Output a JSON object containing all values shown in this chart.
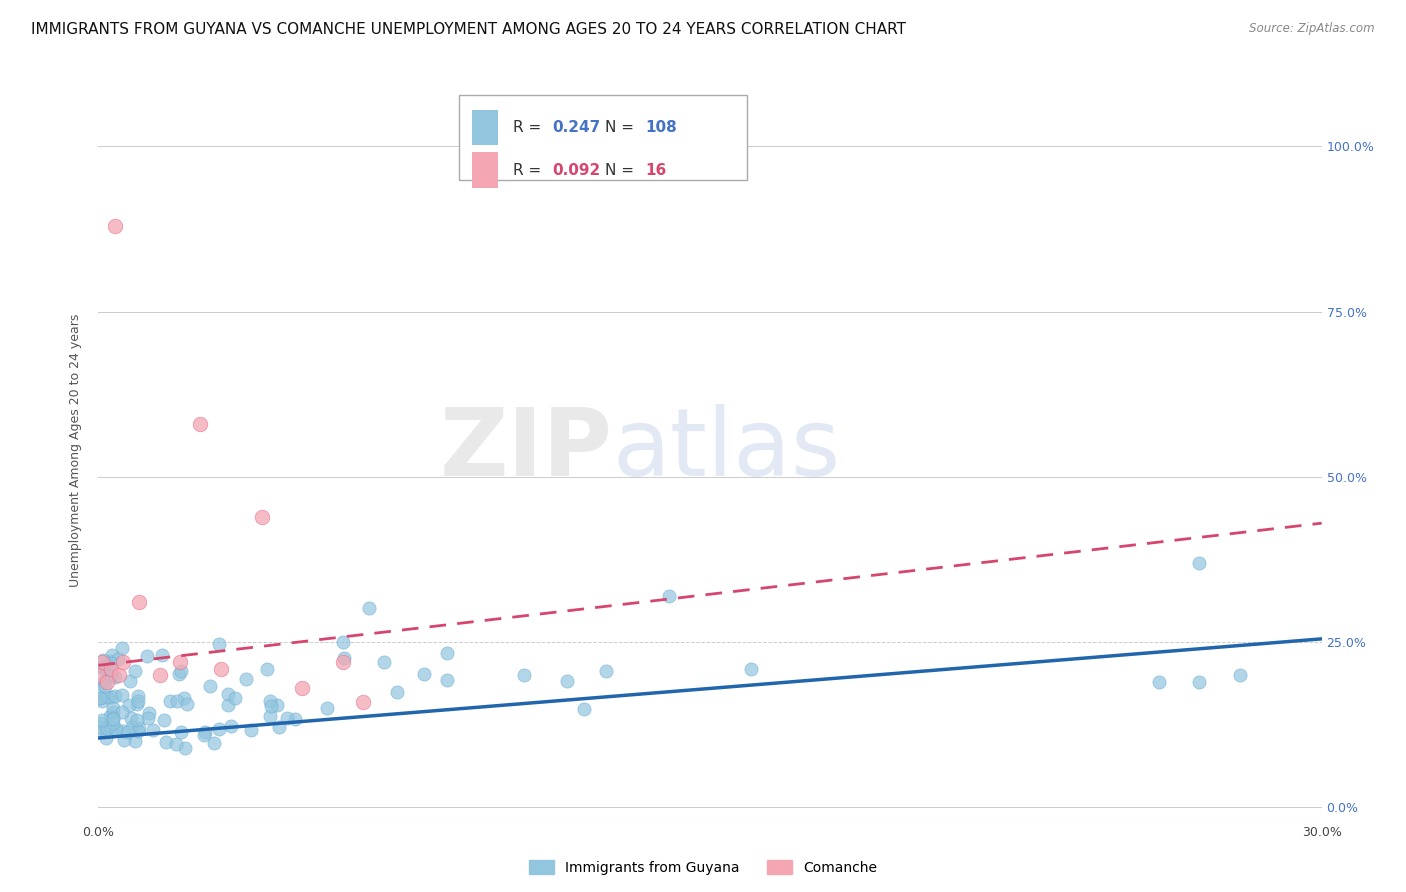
{
  "title": "IMMIGRANTS FROM GUYANA VS COMANCHE UNEMPLOYMENT AMONG AGES 20 TO 24 YEARS CORRELATION CHART",
  "source": "Source: ZipAtlas.com",
  "ylabel": "Unemployment Among Ages 20 to 24 years",
  "xlim": [
    0.0,
    0.3
  ],
  "ylim": [
    -0.02,
    1.1
  ],
  "ytick_vals": [
    0.0,
    0.25,
    0.5,
    0.75,
    1.0
  ],
  "right_ytick_labels": [
    "0.0%",
    "25.0%",
    "50.0%",
    "75.0%",
    "100.0%"
  ],
  "xtick_vals": [
    0.0,
    0.3
  ],
  "xtick_labels": [
    "0.0%",
    "30.0%"
  ],
  "series1_name": "Immigrants from Guyana",
  "series1_color": "#92c5de",
  "series1_line_color": "#2166ac",
  "series1_R": 0.247,
  "series1_N": 108,
  "series2_name": "Comanche",
  "series2_color": "#f4a6b2",
  "series2_line_color": "#d6456e",
  "series2_R": 0.092,
  "series2_N": 16,
  "watermark_zip": "ZIP",
  "watermark_atlas": "atlas",
  "background_color": "#ffffff",
  "grid_color": "#cccccc",
  "title_fontsize": 11,
  "axis_label_fontsize": 9,
  "tick_fontsize": 9,
  "legend_fontsize": 11
}
